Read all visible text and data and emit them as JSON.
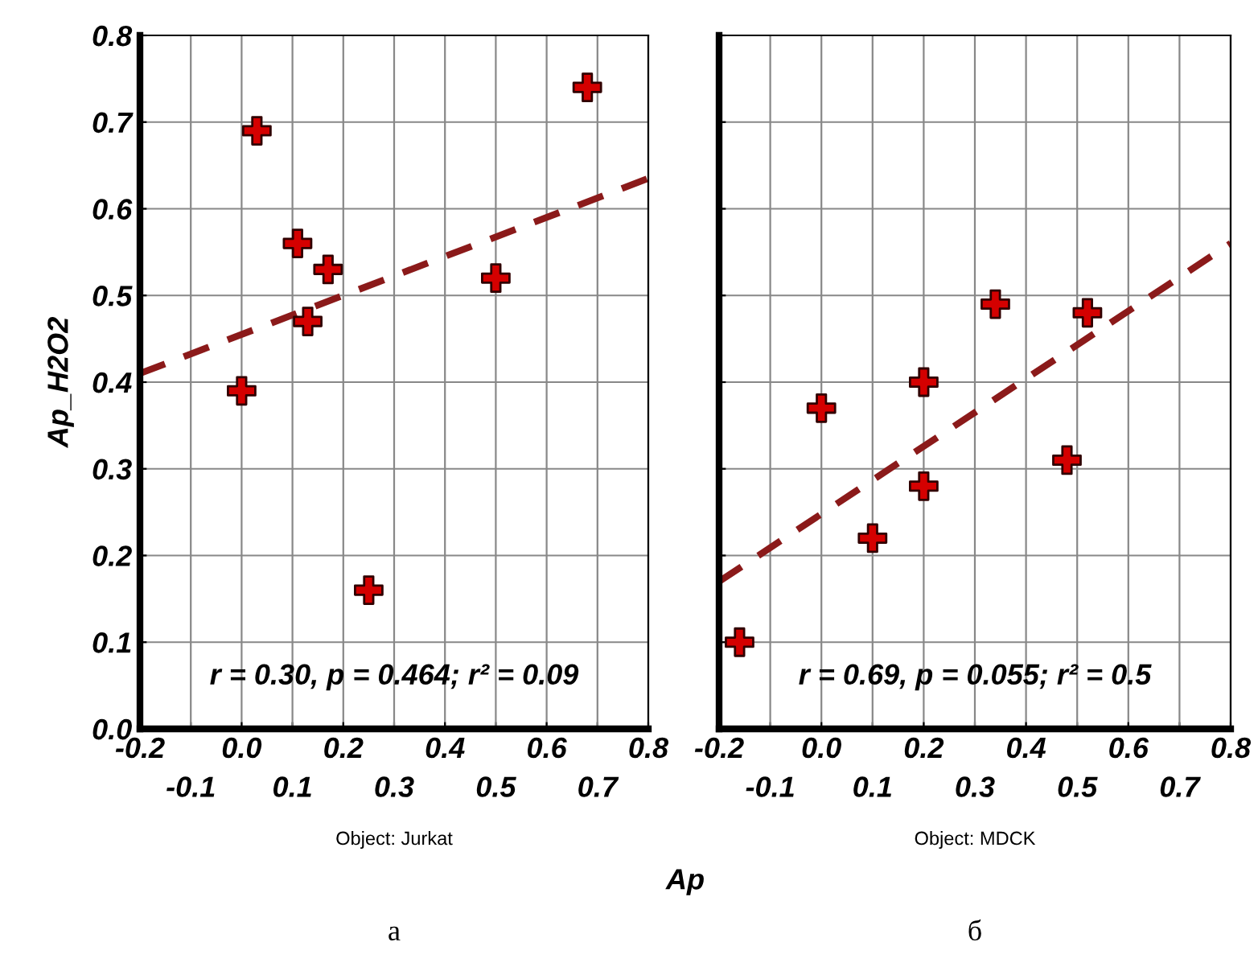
{
  "chart_data": [
    {
      "type": "scatter",
      "ylabel": "Ap_H2O2",
      "xlabel": "Ap",
      "xlim": [
        -0.2,
        0.8
      ],
      "ylim": [
        0.0,
        0.8
      ],
      "xticks": [
        {
          "value": -0.2,
          "label": "-0.2"
        },
        {
          "value": 0.0,
          "label": "0.0"
        },
        {
          "value": 0.2,
          "label": "0.2"
        },
        {
          "value": 0.4,
          "label": "0.4"
        },
        {
          "value": 0.6,
          "label": "0.6"
        },
        {
          "value": 0.8,
          "label": "0.8"
        }
      ],
      "x2lim": [
        -0.2,
        0.8
      ],
      "x2ticks": [
        {
          "value": -0.1,
          "label": "-0.1"
        },
        {
          "value": 0.1,
          "label": "0.1"
        },
        {
          "value": 0.3,
          "label": "0.3"
        },
        {
          "value": 0.5,
          "label": "0.5"
        },
        {
          "value": 0.7,
          "label": "0.7"
        }
      ],
      "yticks": [
        {
          "value": 0.0,
          "label": "0.0"
        },
        {
          "value": 0.1,
          "label": "0.1"
        },
        {
          "value": 0.2,
          "label": "0.2"
        },
        {
          "value": 0.3,
          "label": "0.3"
        },
        {
          "value": 0.4,
          "label": "0.4"
        },
        {
          "value": 0.5,
          "label": "0.5"
        },
        {
          "value": 0.6,
          "label": "0.6"
        },
        {
          "value": 0.7,
          "label": "0.7"
        },
        {
          "value": 0.8,
          "label": "0.8"
        }
      ],
      "grid": true,
      "series": [
        {
          "marker": "cross",
          "color": "#d40000",
          "x": [
            0.0,
            0.03,
            0.11,
            0.13,
            0.17,
            0.25,
            0.5,
            0.68
          ],
          "values": [
            0.39,
            0.69,
            0.56,
            0.47,
            0.53,
            0.16,
            0.52,
            0.74
          ]
        },
        {
          "type": "line",
          "color": "#8b1a1a",
          "line_style": "dashed",
          "x": [
            -0.2,
            0.8
          ],
          "values": [
            0.41,
            0.635
          ]
        }
      ],
      "annotations": [
        "r = 0.30, p = 0.464; r² = 0.09",
        "Object: Jurkat",
        "а"
      ]
    },
    {
      "type": "scatter",
      "xlim": [
        -0.2,
        0.8
      ],
      "ylim": [
        0.0,
        0.8
      ],
      "tick_labels": "x",
      "xticks": [
        {
          "value": -0.2,
          "label": "-0.2"
        },
        {
          "value": 0.0,
          "label": "0.0"
        },
        {
          "value": 0.2,
          "label": "0.2"
        },
        {
          "value": 0.4,
          "label": "0.4"
        },
        {
          "value": 0.6,
          "label": "0.6"
        },
        {
          "value": 0.8,
          "label": "0.8"
        }
      ],
      "x2lim": [
        -0.2,
        0.8
      ],
      "x2ticks": [
        {
          "value": -0.1,
          "label": "-0.1"
        },
        {
          "value": 0.1,
          "label": "0.1"
        },
        {
          "value": 0.3,
          "label": "0.3"
        },
        {
          "value": 0.5,
          "label": "0.5"
        },
        {
          "value": 0.7,
          "label": "0.7"
        }
      ],
      "yticks": [
        0.0,
        0.1,
        0.2,
        0.3,
        0.4,
        0.5,
        0.6,
        0.7,
        0.8
      ],
      "grid": true,
      "series": [
        {
          "marker": "cross",
          "color": "#d40000",
          "x": [
            -0.16,
            0.0,
            0.1,
            0.2,
            0.2,
            0.34,
            0.48,
            0.52
          ],
          "values": [
            0.1,
            0.37,
            0.22,
            0.4,
            0.28,
            0.49,
            0.31,
            0.48
          ]
        },
        {
          "type": "line",
          "color": "#8b1a1a",
          "line_style": "dashed",
          "x": [
            -0.2,
            0.8
          ],
          "values": [
            0.17,
            0.56
          ]
        }
      ],
      "annotations": [
        "r = 0.69, p = 0.055; r² = 0.5",
        "Object: MDCK",
        "б"
      ]
    }
  ]
}
